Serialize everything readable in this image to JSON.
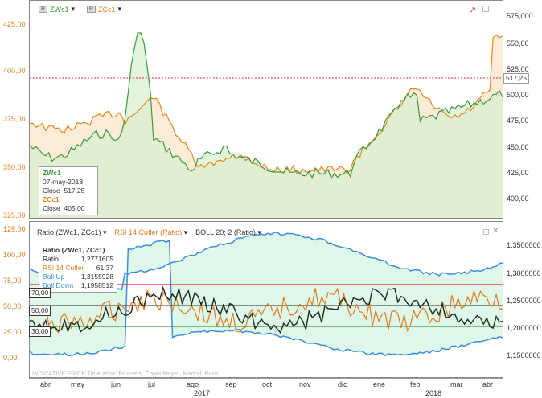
{
  "top_panel": {
    "legend": [
      {
        "label": "ZWc1",
        "color": "#3a9a3a"
      },
      {
        "label": "ZCc1",
        "color": "#e08a1e"
      }
    ],
    "left_ticks": [
      "425,00",
      "400,00",
      "375,00",
      "350,00",
      "325,00"
    ],
    "right_ticks": [
      "575,000",
      "550,00",
      "525,00",
      "500,00",
      "475,00",
      "450,00",
      "425,00",
      "400,00"
    ],
    "last_price_tag": "517,25",
    "tooltip": {
      "s1_name": "ZWc1",
      "date": "07-may-2018",
      "s1_close_label": "Close",
      "s1_close": "517,25",
      "s2_name": "ZCc1",
      "s2_close_label": "Close",
      "s2_close": "405,00"
    }
  },
  "bottom_panel": {
    "legend": [
      {
        "label": "Ratio (ZWc1, ZCc1)",
        "color": "#222"
      },
      {
        "label": "RSI 14 Cutler (Ratio)",
        "color": "#e07a1e"
      },
      {
        "label": "BOLL 20; 2 (Ratio)",
        "color": "#222"
      }
    ],
    "left_ticks": [
      "125,00",
      "100,00",
      "75,00",
      "50,00",
      "25,00",
      "0,00"
    ],
    "right_ticks": [
      "1,3500000",
      "1,3000000",
      "1,2500000",
      "1,2000000",
      "1,1500000"
    ],
    "level_tags": [
      "70,00",
      "50,00",
      "30,00"
    ],
    "tooltip": {
      "title": "Ratio (ZWc1, ZCc1)",
      "rows": [
        {
          "label": "Ratio",
          "value": "1,2771605",
          "color": "#222"
        },
        {
          "label": "RSI 14 Cutler",
          "value": "61,37",
          "color": "#e07a1e"
        },
        {
          "label": "Boll Up",
          "value": "1,3155928",
          "color": "#3a8fd8"
        },
        {
          "label": "Boll Down",
          "value": "1,1958512",
          "color": "#3a8fd8"
        }
      ]
    },
    "watermark": "INDICATIVE PRICE   Time zone: Brussels, Copenhagen, Madrid, Paris"
  },
  "x_axis": {
    "months": [
      "abr",
      "may",
      "jun",
      "jul",
      "ago",
      "sep",
      "oct",
      "nov",
      "dic",
      "ene",
      "feb",
      "mar",
      "abr"
    ],
    "years": [
      "2017",
      "2018"
    ]
  }
}
